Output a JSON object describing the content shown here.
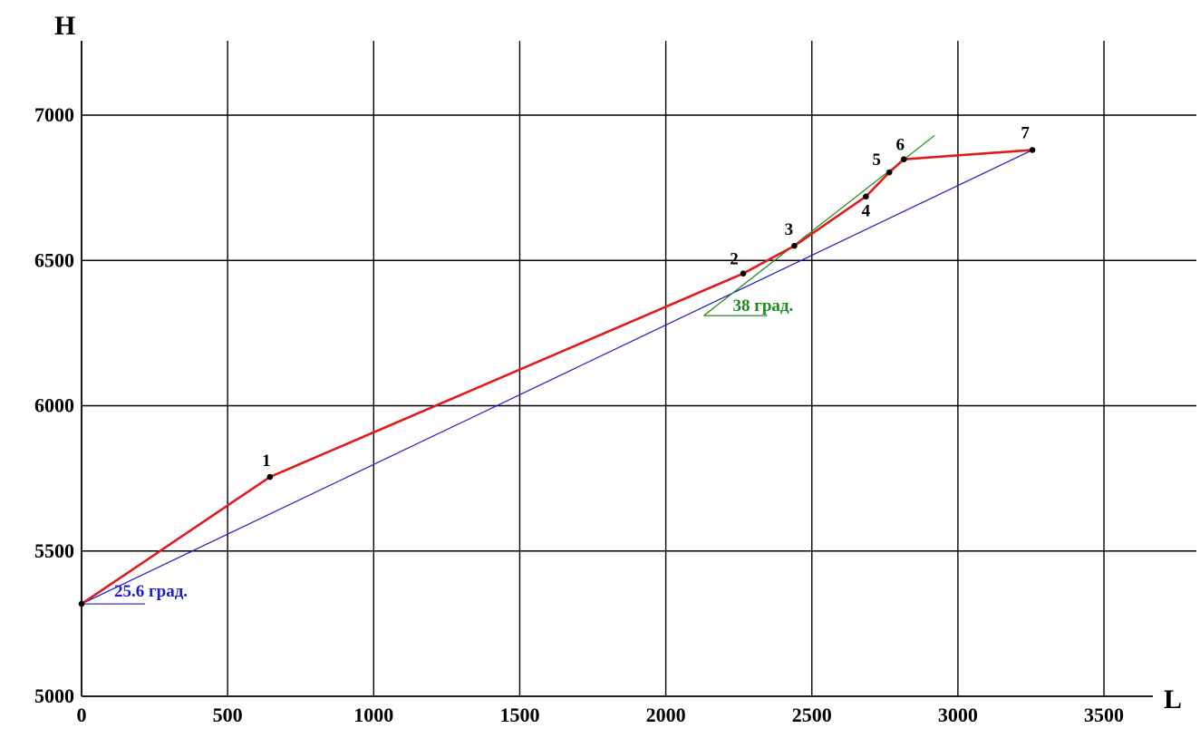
{
  "chart_data": {
    "type": "line",
    "title": "",
    "xlabel": "L",
    "ylabel": "H",
    "xlim": [
      0,
      3720
    ],
    "ylim": [
      5000,
      7200
    ],
    "grid": true,
    "x_ticks": [
      0,
      500,
      1000,
      1500,
      2000,
      2500,
      3000,
      3500
    ],
    "y_ticks": [
      5000,
      5500,
      6000,
      6500,
      7000
    ],
    "x_tick_labels": [
      "0",
      "500",
      "1000",
      "1500",
      "2000",
      "2500",
      "3000",
      "3500"
    ],
    "y_tick_labels": [
      "5000",
      "5500",
      "6000",
      "6500",
      "7000"
    ],
    "series": [
      {
        "color": "#e01b1b",
        "points": [
          {
            "label": "",
            "x": 0,
            "y": 5318
          },
          {
            "label": "1",
            "x": 645,
            "y": 5755
          },
          {
            "label": "2",
            "x": 2265,
            "y": 6455
          },
          {
            "label": "3",
            "x": 2440,
            "y": 6550
          },
          {
            "label": "4",
            "x": 2685,
            "y": 6720
          },
          {
            "label": "5",
            "x": 2765,
            "y": 6803
          },
          {
            "label": "6",
            "x": 2815,
            "y": 6848
          },
          {
            "label": "7",
            "x": 3255,
            "y": 6880
          }
        ]
      }
    ],
    "reference_lines": [
      {
        "color": "#1c1ccc",
        "from": [
          0,
          5318
        ],
        "to": [
          3255,
          6880
        ],
        "annotation": "25.6 град."
      },
      {
        "color": "#1e8a1e",
        "from": [
          2130,
          6310
        ],
        "to": [
          2920,
          6930
        ],
        "annotation": "38 град."
      }
    ]
  }
}
